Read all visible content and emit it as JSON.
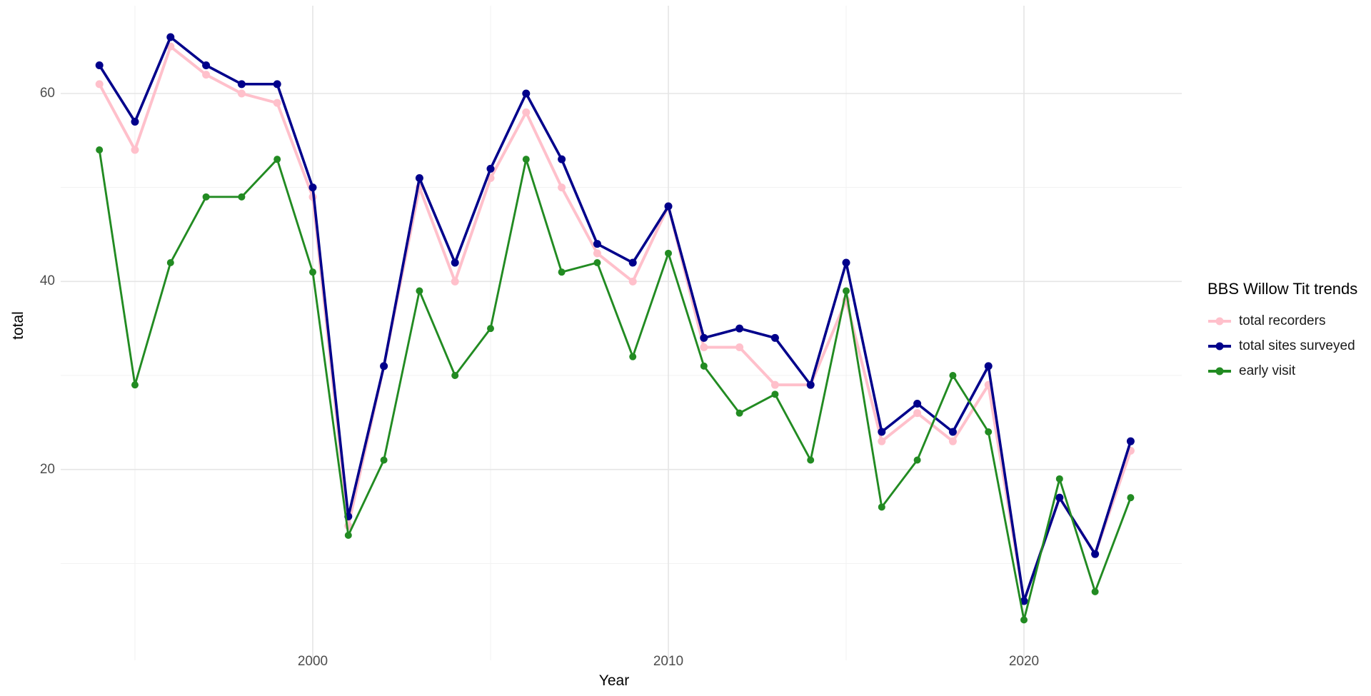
{
  "chart_data": {
    "type": "line",
    "title": "BBS Willow Tit trends",
    "xlabel": "Year",
    "ylabel": "total",
    "x": [
      1994,
      1995,
      1996,
      1997,
      1998,
      1999,
      2000,
      2001,
      2002,
      2003,
      2004,
      2005,
      2006,
      2007,
      2008,
      2009,
      2010,
      2011,
      2012,
      2013,
      2014,
      2015,
      2016,
      2017,
      2018,
      2019,
      2020,
      2021,
      2022,
      2023
    ],
    "series": [
      {
        "name": "total recorders",
        "color": "#FFC0CB",
        "values": [
          61,
          54,
          65,
          62,
          60,
          59,
          49,
          14,
          31,
          50,
          40,
          51,
          58,
          50,
          43,
          40,
          48,
          33,
          33,
          29,
          29,
          38,
          23,
          26,
          23,
          29,
          6,
          17,
          11,
          22
        ]
      },
      {
        "name": "total sites surveyed",
        "color": "#00008B",
        "values": [
          63,
          57,
          66,
          63,
          61,
          61,
          50,
          15,
          31,
          51,
          42,
          52,
          60,
          53,
          44,
          42,
          48,
          34,
          35,
          34,
          29,
          42,
          24,
          27,
          24,
          31,
          6,
          17,
          11,
          23
        ]
      },
      {
        "name": "early visit",
        "color": "#228B22",
        "values": [
          54,
          29,
          42,
          49,
          49,
          53,
          41,
          13,
          21,
          39,
          30,
          35,
          53,
          41,
          42,
          32,
          43,
          31,
          26,
          28,
          21,
          39,
          16,
          21,
          30,
          24,
          4,
          19,
          7,
          17
        ]
      }
    ],
    "x_ticks": [
      2000,
      2010,
      2020
    ],
    "x_minor_gridlines": [
      1995,
      2005,
      2015
    ],
    "y_ticks": [
      60,
      40,
      20
    ],
    "y_minor_gridlines": [
      50,
      30,
      10
    ],
    "xlim": [
      1992.9,
      2024.4
    ],
    "ylim": [
      2.5,
      69.3
    ],
    "grid": true,
    "legend_position": "right"
  },
  "axes": {
    "x_title": "Year",
    "y_title": "total",
    "x_tick_labels": [
      "2000",
      "2010",
      "2020"
    ],
    "y_tick_labels": [
      "60",
      "40",
      "20"
    ],
    "tick_color": "#4d4d4d"
  },
  "legend": {
    "title": "BBS Willow Tit trends",
    "items": [
      {
        "label": "total recorders",
        "color": "#FFC0CB"
      },
      {
        "label": "total sites surveyed",
        "color": "#00008B"
      },
      {
        "label": "early visit",
        "color": "#228B22"
      }
    ]
  },
  "colors": {
    "background": "#ffffff",
    "grid_major": "#e5e5e5",
    "grid_minor": "#f1f1f1",
    "tick_text": "#4d4d4d",
    "title_text": "#000000"
  }
}
